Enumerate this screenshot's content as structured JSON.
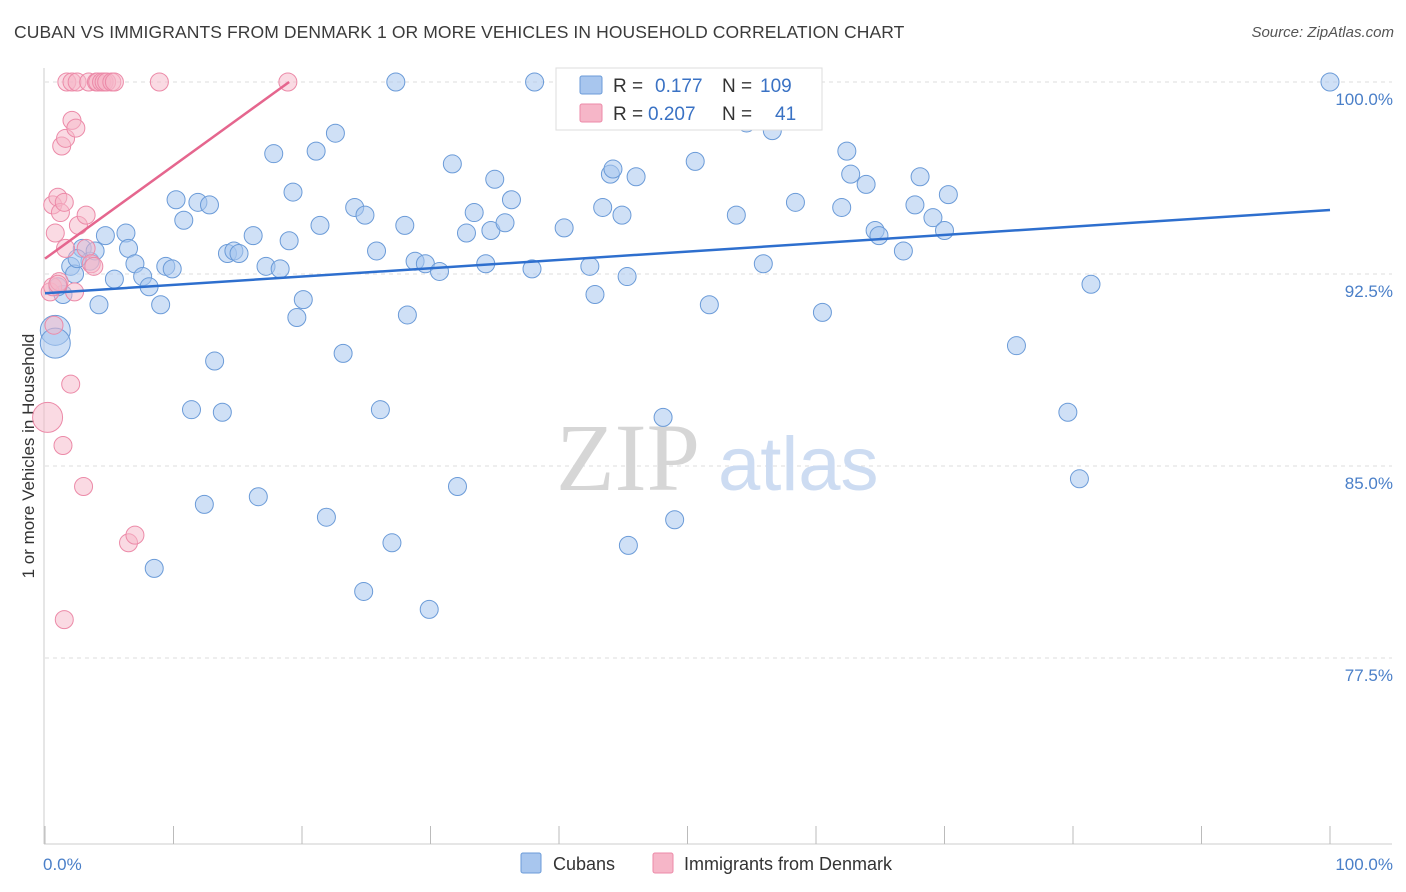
{
  "title": "CUBAN VS IMMIGRANTS FROM DENMARK 1 OR MORE VEHICLES IN HOUSEHOLD CORRELATION CHART",
  "source": "Source: ZipAtlas.com",
  "watermark": {
    "zip": "ZIP",
    "atlas": "atlas"
  },
  "legend": {
    "r_label": "R =",
    "n_label": "N =",
    "rows": [
      {
        "r": "0.177",
        "n": "109",
        "color": "#a8c6ee"
      },
      {
        "r": "0.207",
        "n": "41",
        "color": "#f6b6c8"
      }
    ]
  },
  "colors": {
    "blue_fill": "#a8c6ee",
    "blue_stroke": "#6b9bd8",
    "blue_line": "#2e6fce",
    "pink_fill": "#f6b6c8",
    "pink_stroke": "#ec8aa8",
    "pink_line": "#e5668e",
    "grid": "#dddddd",
    "tick_text": "#4a7fc8"
  },
  "chart_data": {
    "type": "scatter",
    "title": "CUBAN VS IMMIGRANTS FROM DENMARK 1 OR MORE VEHICLES IN HOUSEHOLD CORRELATION CHART",
    "xlabel": "",
    "ylabel": "1 or more Vehicles in Household",
    "xlim": [
      0,
      100
    ],
    "ylim": [
      70.2,
      101.5
    ],
    "x_tick_labels": [
      "0.0%",
      "100.0%"
    ],
    "y_ticks": [
      {
        "value": 100.0,
        "label": "100.0%"
      },
      {
        "value": 92.5,
        "label": "92.5%"
      },
      {
        "value": 85.0,
        "label": "85.0%"
      },
      {
        "value": 77.5,
        "label": "77.5%"
      }
    ],
    "grid": "horizontal dashed",
    "legend_position": "top-center",
    "series": [
      {
        "name": "Cubans",
        "color": "#a8c6ee",
        "trend": {
          "x": [
            0,
            100
          ],
          "y": [
            91.75,
            95.0
          ]
        },
        "points": [
          [
            0.8,
            90.3
          ],
          [
            0.8,
            89.8
          ],
          [
            1.4,
            91.7
          ],
          [
            2.0,
            92.8
          ],
          [
            2.3,
            92.5
          ],
          [
            2.9,
            93.5
          ],
          [
            3.5,
            93.0
          ],
          [
            3.9,
            93.4
          ],
          [
            4.2,
            91.3
          ],
          [
            4.7,
            94.0
          ],
          [
            5.4,
            92.3
          ],
          [
            6.3,
            94.1
          ],
          [
            6.5,
            93.5
          ],
          [
            7.0,
            92.9
          ],
          [
            7.6,
            92.4
          ],
          [
            8.1,
            92.0
          ],
          [
            8.5,
            81.0
          ],
          [
            9.0,
            91.3
          ],
          [
            9.4,
            92.8
          ],
          [
            9.9,
            92.7
          ],
          [
            10.2,
            95.4
          ],
          [
            10.8,
            94.6
          ],
          [
            11.4,
            87.2
          ],
          [
            11.9,
            95.3
          ],
          [
            12.4,
            83.5
          ],
          [
            12.8,
            95.2
          ],
          [
            13.2,
            89.1
          ],
          [
            13.8,
            87.1
          ],
          [
            14.2,
            93.3
          ],
          [
            14.7,
            93.4
          ],
          [
            15.1,
            93.3
          ],
          [
            16.2,
            94.0
          ],
          [
            16.6,
            83.8
          ],
          [
            17.2,
            92.8
          ],
          [
            17.8,
            97.2
          ],
          [
            18.3,
            92.7
          ],
          [
            19.0,
            93.8
          ],
          [
            19.3,
            95.7
          ],
          [
            19.6,
            90.8
          ],
          [
            20.1,
            91.5
          ],
          [
            21.1,
            97.3
          ],
          [
            21.4,
            94.4
          ],
          [
            21.9,
            83.0
          ],
          [
            22.6,
            98.0
          ],
          [
            23.2,
            89.4
          ],
          [
            24.1,
            95.1
          ],
          [
            24.8,
            80.1
          ],
          [
            24.9,
            94.8
          ],
          [
            25.8,
            93.4
          ],
          [
            26.1,
            87.2
          ],
          [
            27.0,
            82.0
          ],
          [
            27.3,
            100.0
          ],
          [
            28.0,
            94.4
          ],
          [
            28.2,
            90.9
          ],
          [
            28.8,
            93.0
          ],
          [
            29.6,
            92.9
          ],
          [
            29.9,
            79.4
          ],
          [
            30.7,
            92.6
          ],
          [
            31.7,
            96.8
          ],
          [
            32.1,
            84.2
          ],
          [
            32.8,
            94.1
          ],
          [
            33.4,
            94.9
          ],
          [
            34.3,
            92.9
          ],
          [
            34.7,
            94.2
          ],
          [
            35.0,
            96.2
          ],
          [
            35.8,
            94.5
          ],
          [
            36.3,
            95.4
          ],
          [
            37.9,
            92.7
          ],
          [
            38.1,
            100.0
          ],
          [
            40.4,
            94.3
          ],
          [
            42.4,
            92.8
          ],
          [
            42.8,
            91.7
          ],
          [
            43.4,
            95.1
          ],
          [
            44.0,
            96.4
          ],
          [
            44.2,
            96.6
          ],
          [
            44.9,
            94.8
          ],
          [
            45.3,
            92.4
          ],
          [
            45.4,
            81.9
          ],
          [
            46.0,
            96.3
          ],
          [
            48.1,
            86.9
          ],
          [
            49.0,
            82.9
          ],
          [
            50.6,
            96.9
          ],
          [
            51.7,
            91.3
          ],
          [
            52.8,
            99.2
          ],
          [
            53.8,
            94.8
          ],
          [
            54.6,
            98.4
          ],
          [
            55.9,
            92.9
          ],
          [
            56.6,
            98.1
          ],
          [
            58.4,
            95.3
          ],
          [
            60.5,
            91.0
          ],
          [
            62.0,
            95.1
          ],
          [
            62.4,
            97.3
          ],
          [
            62.7,
            96.4
          ],
          [
            63.9,
            96.0
          ],
          [
            64.6,
            94.2
          ],
          [
            64.9,
            94.0
          ],
          [
            66.8,
            93.4
          ],
          [
            67.7,
            95.2
          ],
          [
            68.1,
            96.3
          ],
          [
            69.1,
            94.7
          ],
          [
            70.0,
            94.2
          ],
          [
            70.3,
            95.6
          ],
          [
            75.6,
            89.7
          ],
          [
            79.6,
            87.1
          ],
          [
            80.5,
            84.5
          ],
          [
            81.4,
            92.1
          ],
          [
            100.0,
            100.0
          ],
          [
            2.5,
            93.1
          ],
          [
            1.0,
            92.0
          ]
        ]
      },
      {
        "name": "Immigrants from Denmark",
        "color": "#f6b6c8",
        "trend": {
          "x": [
            0,
            19
          ],
          "y": [
            93.1,
            100.0
          ]
        },
        "points": [
          [
            0.2,
            86.9
          ],
          [
            0.4,
            91.8
          ],
          [
            0.6,
            95.2
          ],
          [
            0.6,
            92.0
          ],
          [
            0.7,
            90.5
          ],
          [
            0.8,
            94.1
          ],
          [
            1.0,
            95.5
          ],
          [
            1.1,
            92.2
          ],
          [
            1.2,
            94.9
          ],
          [
            1.3,
            97.5
          ],
          [
            1.4,
            85.8
          ],
          [
            1.5,
            95.3
          ],
          [
            1.5,
            79.0
          ],
          [
            1.6,
            97.8
          ],
          [
            1.6,
            93.5
          ],
          [
            1.7,
            100.0
          ],
          [
            2.0,
            88.2
          ],
          [
            2.1,
            98.5
          ],
          [
            2.1,
            100.0
          ],
          [
            2.3,
            91.8
          ],
          [
            2.4,
            98.2
          ],
          [
            2.5,
            100.0
          ],
          [
            2.6,
            94.4
          ],
          [
            3.0,
            84.2
          ],
          [
            3.2,
            93.5
          ],
          [
            3.2,
            94.8
          ],
          [
            3.4,
            100.0
          ],
          [
            3.6,
            92.9
          ],
          [
            3.8,
            92.8
          ],
          [
            4.0,
            100.0
          ],
          [
            4.1,
            100.0
          ],
          [
            4.4,
            100.0
          ],
          [
            4.6,
            100.0
          ],
          [
            4.8,
            100.0
          ],
          [
            5.2,
            100.0
          ],
          [
            5.4,
            100.0
          ],
          [
            6.5,
            82.0
          ],
          [
            7.0,
            82.3
          ],
          [
            8.9,
            100.0
          ],
          [
            18.9,
            100.0
          ],
          [
            1.0,
            92.1
          ]
        ]
      }
    ]
  }
}
